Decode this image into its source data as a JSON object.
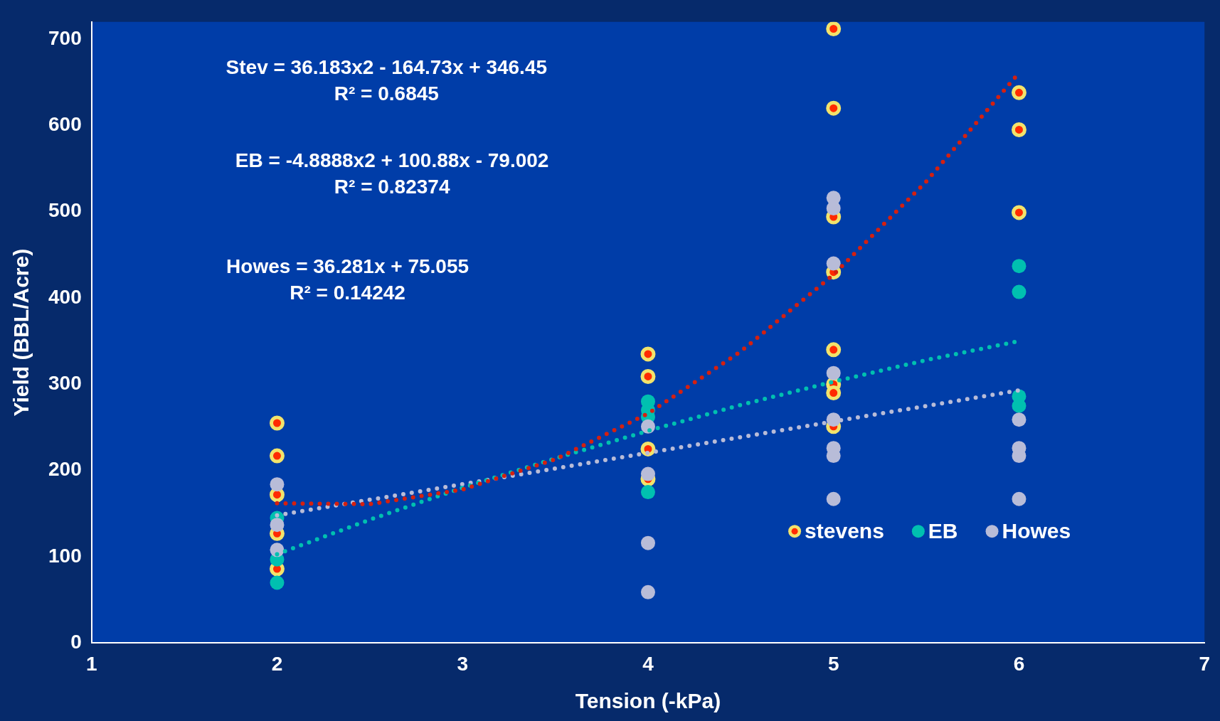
{
  "chart_data": {
    "type": "scatter",
    "xlabel": "Tension (-kPa)",
    "ylabel": "Yield (BBL/Acre)",
    "xlim": [
      1,
      7
    ],
    "xticks": [
      1,
      2,
      3,
      4,
      5,
      6,
      7
    ],
    "ylim": [
      0,
      720
    ],
    "yticks": [
      0,
      100,
      200,
      300,
      400,
      500,
      600,
      700
    ],
    "legend": "bottom right",
    "marker": "circle",
    "annotations": [
      "Stev = 36.183x2 - 164.73x + 346.45\nR² = 0.6845",
      "EB = -4.8888x2 + 100.88x - 79.002\nR² = 0.82374",
      "Howes = 36.281x + 75.055\nR² = 0.14242"
    ],
    "series": [
      {
        "name": "stevens",
        "color": "#f2e36b",
        "x": [
          2,
          2,
          2,
          2,
          2,
          4,
          4,
          4,
          4,
          5,
          5,
          5,
          5,
          5,
          5,
          5,
          5,
          6,
          6,
          6
        ],
        "values": [
          255,
          217,
          172,
          127,
          86,
          335,
          309,
          225,
          190,
          712,
          620,
          494,
          430,
          340,
          300,
          290,
          251,
          638,
          595,
          499
        ]
      },
      {
        "name": "EB",
        "color": "#00c0b0",
        "x": [
          2,
          2,
          2,
          4,
          4,
          4,
          4,
          6,
          6,
          6,
          6
        ],
        "values": [
          145,
          97,
          70,
          280,
          270,
          262,
          175,
          437,
          407,
          286,
          275
        ]
      },
      {
        "name": "Howes",
        "color": "#b8bcd8",
        "x": [
          2,
          2,
          2,
          4,
          4,
          4,
          4,
          5,
          5,
          5,
          5,
          5,
          5,
          5,
          5,
          6,
          6,
          6,
          6
        ],
        "values": [
          184,
          137,
          108,
          251,
          196,
          116,
          59,
          516,
          504,
          440,
          313,
          259,
          226,
          217,
          167,
          259,
          226,
          217,
          167
        ]
      },
      {
        "type": "line",
        "color": "#d42010",
        "marker": "none",
        "line_style": "dotted",
        "x": [
          2,
          2.5,
          3,
          3.5,
          4,
          4.5,
          5,
          5.5,
          6
        ],
        "values": [
          162,
          161,
          178,
          213,
          266,
          338,
          427,
          535,
          661
        ]
      },
      {
        "type": "line",
        "color": "#00c0b0",
        "marker": "none",
        "line_style": "dotted",
        "x": [
          2,
          2.5,
          3,
          3.5,
          4,
          4.5,
          5,
          5.5,
          6
        ],
        "values": [
          103,
          143,
          180,
          214,
          246,
          276,
          303,
          328,
          350
        ]
      },
      {
        "type": "line",
        "color": "#b8bcd8",
        "marker": "none",
        "line_style": "dotted",
        "x": [
          2,
          6
        ],
        "values": [
          148,
          293
        ]
      }
    ]
  }
}
